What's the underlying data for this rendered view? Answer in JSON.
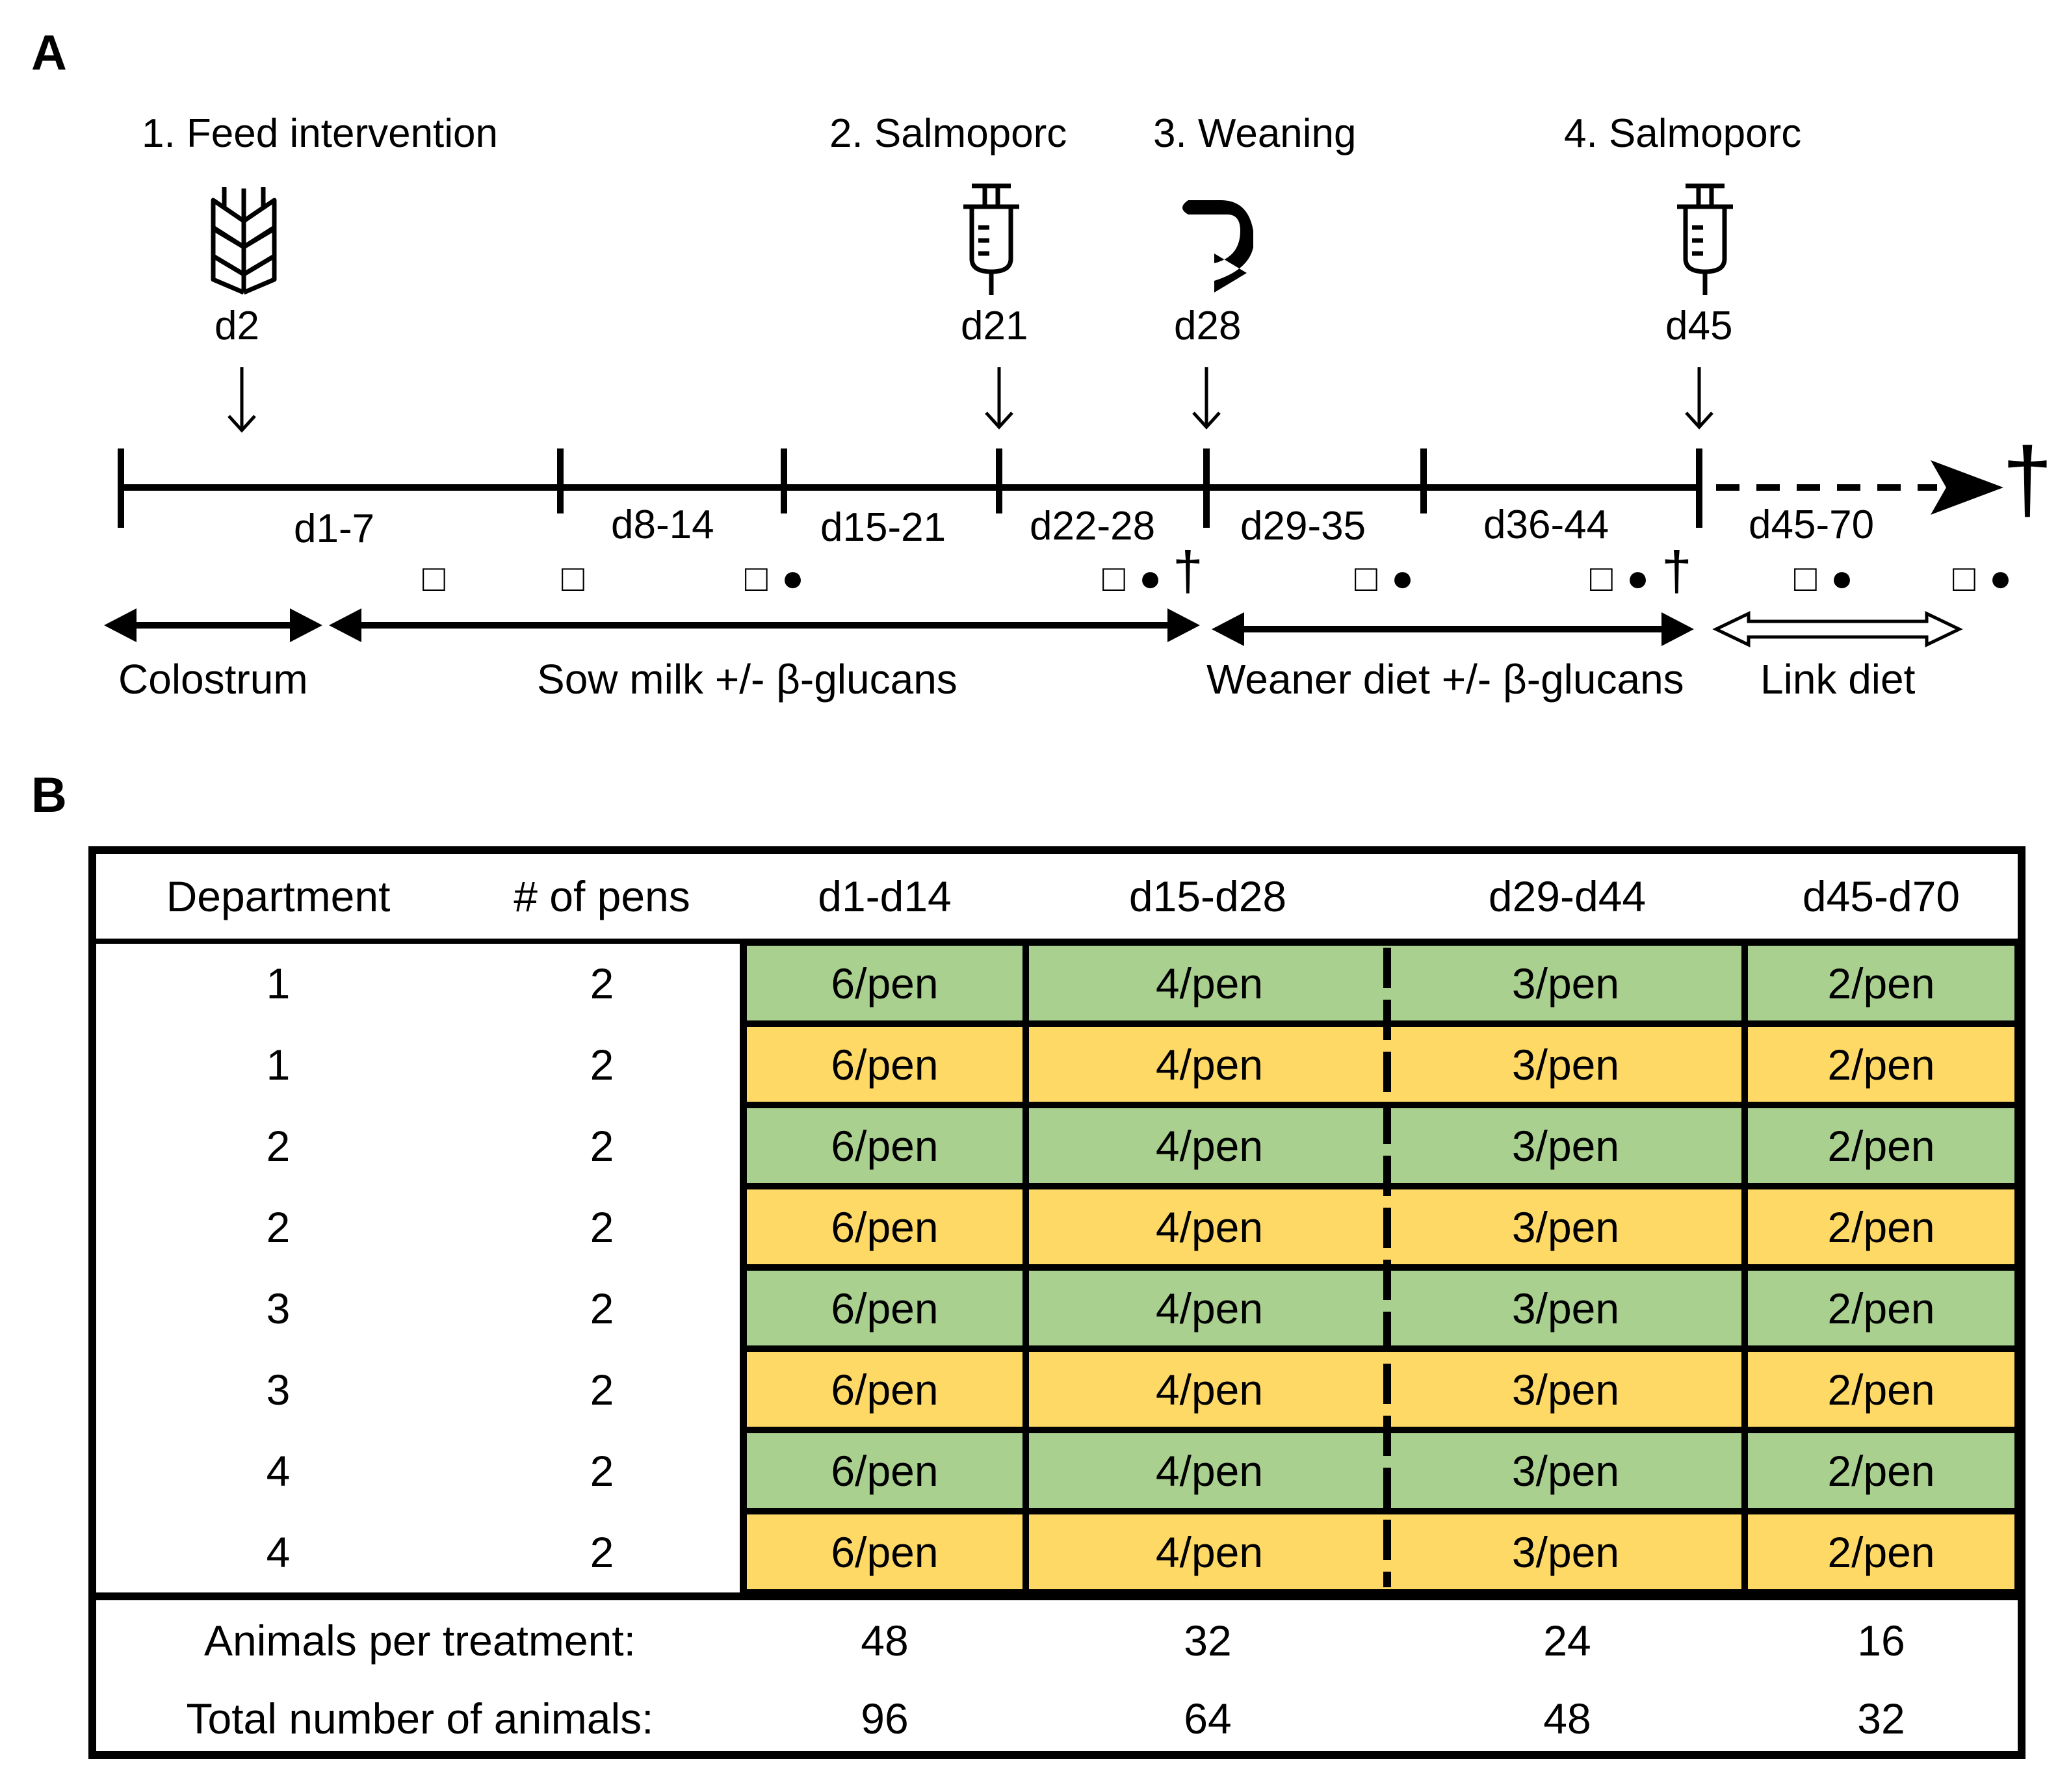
{
  "panel_a": {
    "label": "A",
    "events": [
      {
        "title": "1. Feed intervention",
        "day": "d2",
        "icon": "wheat-icon"
      },
      {
        "title": "2. Salmoporc",
        "day": "d21",
        "icon": "syringe-icon"
      },
      {
        "title": "3. Weaning",
        "day": "d28",
        "icon": "curved-arrow-icon"
      },
      {
        "title": "4. Salmoporc",
        "day": "d45",
        "icon": "syringe-icon"
      }
    ],
    "weeks": [
      "d1-7",
      "d8-14",
      "d15-21",
      "d22-28",
      "d29-35",
      "d36-44",
      "d45-70"
    ],
    "sample_square": "□",
    "sample_dot": "●",
    "dagger": "†",
    "diets": [
      "Colostrum",
      "Sow milk +/- β-glucans",
      "Weaner diet +/- β-glucans",
      "Link diet"
    ]
  },
  "panel_b": {
    "label": "B",
    "headers": [
      "Department",
      "# of pens",
      "d1-d14",
      "d15-d28",
      "d29-d44",
      "d45-d70"
    ],
    "rows": [
      {
        "dept": "1",
        "pens": "2",
        "values": [
          "6/pen",
          "4/pen",
          "3/pen",
          "2/pen"
        ],
        "color": "green"
      },
      {
        "dept": "1",
        "pens": "2",
        "values": [
          "6/pen",
          "4/pen",
          "3/pen",
          "2/pen"
        ],
        "color": "yellow"
      },
      {
        "dept": "2",
        "pens": "2",
        "values": [
          "6/pen",
          "4/pen",
          "3/pen",
          "2/pen"
        ],
        "color": "green"
      },
      {
        "dept": "2",
        "pens": "2",
        "values": [
          "6/pen",
          "4/pen",
          "3/pen",
          "2/pen"
        ],
        "color": "yellow"
      },
      {
        "dept": "3",
        "pens": "2",
        "values": [
          "6/pen",
          "4/pen",
          "3/pen",
          "2/pen"
        ],
        "color": "green"
      },
      {
        "dept": "3",
        "pens": "2",
        "values": [
          "6/pen",
          "4/pen",
          "3/pen",
          "2/pen"
        ],
        "color": "yellow"
      },
      {
        "dept": "4",
        "pens": "2",
        "values": [
          "6/pen",
          "4/pen",
          "3/pen",
          "2/pen"
        ],
        "color": "green"
      },
      {
        "dept": "4",
        "pens": "2",
        "values": [
          "6/pen",
          "4/pen",
          "3/pen",
          "2/pen"
        ],
        "color": "yellow"
      }
    ],
    "summary": [
      {
        "label": "Animals per treatment:",
        "values": [
          "48",
          "32",
          "24",
          "16"
        ]
      },
      {
        "label": "Total number of animals:",
        "values": [
          "96",
          "64",
          "48",
          "32"
        ]
      }
    ],
    "colors": {
      "green": "#a9d08e",
      "yellow": "#ffd966"
    }
  }
}
